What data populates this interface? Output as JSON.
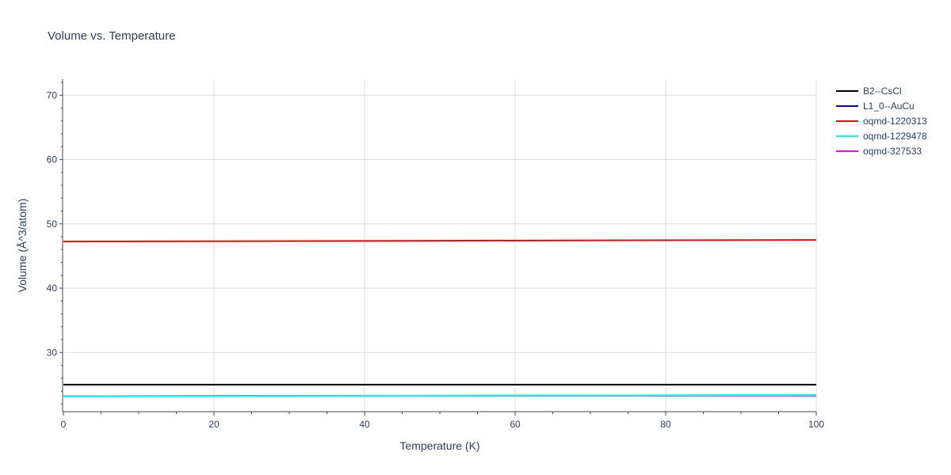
{
  "chart_data": {
    "type": "line",
    "title": "Volume vs. Temperature",
    "xlabel": "Temperature (K)",
    "ylabel": "Volume (Å^3/atom)",
    "xlim": [
      0,
      100
    ],
    "ylim": [
      20.8,
      72.5
    ],
    "xticks": [
      0,
      20,
      40,
      60,
      80,
      100
    ],
    "yticks": [
      30,
      40,
      50,
      60,
      70
    ],
    "grid": true,
    "legend_position": "top-right",
    "x": [
      0,
      100
    ],
    "series": [
      {
        "name": "B2--CsCl",
        "color": "#000000",
        "values": [
          25.0,
          25.0
        ]
      },
      {
        "name": "L1_0--AuCu",
        "color": "#0000ff",
        "values": [
          23.2,
          23.35
        ]
      },
      {
        "name": "oqmd-1220313",
        "color": "#ff0000",
        "values": [
          47.25,
          47.5
        ]
      },
      {
        "name": "oqmd-1229478",
        "color": "#00ffff",
        "values": [
          23.15,
          23.4
        ]
      },
      {
        "name": "oqmd-327533",
        "color": "#ff00ff",
        "values": [
          23.2,
          23.3
        ]
      }
    ]
  }
}
